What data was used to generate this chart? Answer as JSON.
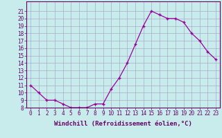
{
  "x": [
    0,
    1,
    2,
    3,
    4,
    5,
    6,
    7,
    8,
    9,
    10,
    11,
    12,
    13,
    14,
    15,
    16,
    17,
    18,
    19,
    20,
    21,
    22,
    23
  ],
  "y": [
    11.0,
    10.0,
    9.0,
    9.0,
    8.5,
    8.0,
    8.0,
    8.0,
    8.5,
    8.5,
    10.5,
    12.0,
    14.0,
    16.5,
    19.0,
    21.0,
    20.5,
    20.0,
    20.0,
    19.5,
    18.0,
    17.0,
    15.5,
    14.5
  ],
  "line_color": "#990099",
  "marker": "+",
  "background_color": "#c8ecec",
  "grid_color": "#aaaacc",
  "xlabel": "Windchill (Refroidissement éolien,°C)",
  "ylim": [
    8,
    22
  ],
  "xlim": [
    -0.5,
    23.5
  ],
  "yticks": [
    8,
    9,
    10,
    11,
    12,
    13,
    14,
    15,
    16,
    17,
    18,
    19,
    20,
    21
  ],
  "xticks": [
    0,
    1,
    2,
    3,
    4,
    5,
    6,
    7,
    8,
    9,
    10,
    11,
    12,
    13,
    14,
    15,
    16,
    17,
    18,
    19,
    20,
    21,
    22,
    23
  ],
  "tick_label_fontsize": 5.5,
  "xlabel_fontsize": 6.5,
  "axis_color": "#660066",
  "tick_color": "#660066"
}
